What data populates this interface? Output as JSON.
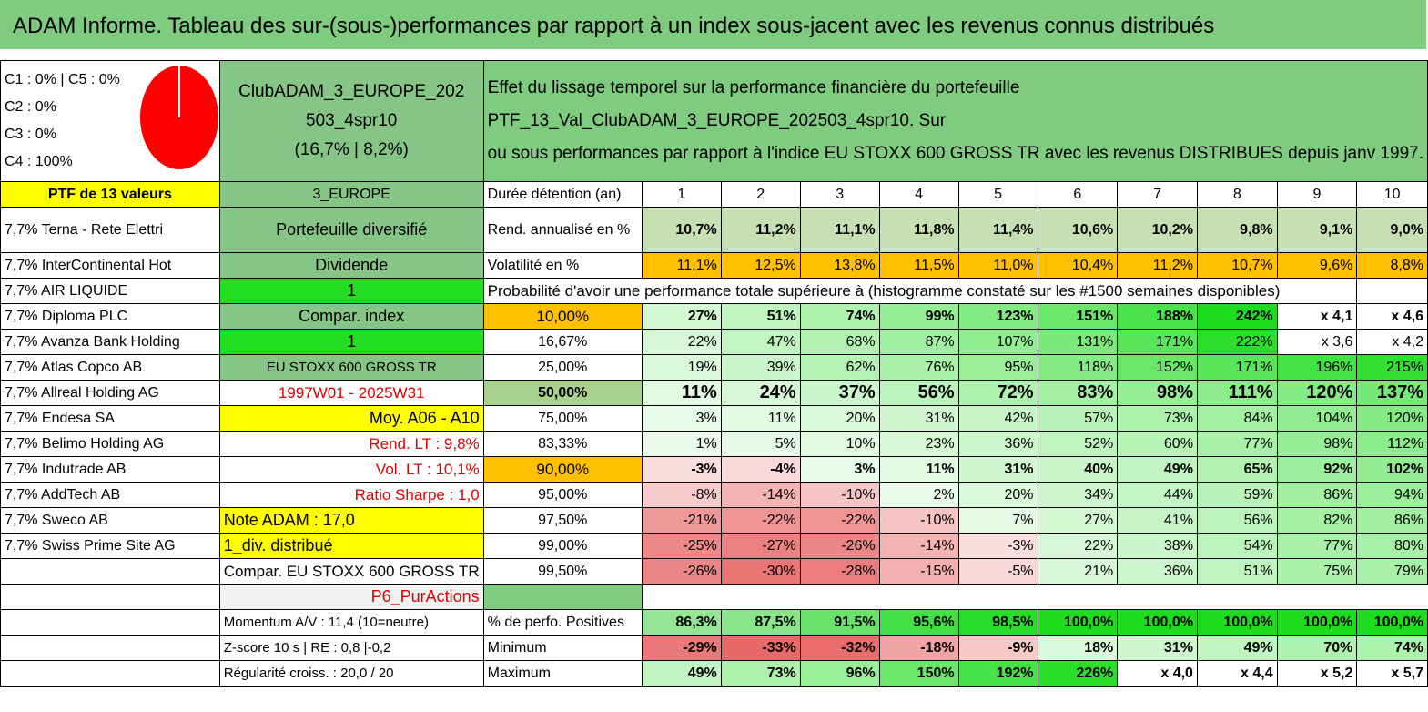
{
  "title": "ADAM Informe. Tableau des sur-(sous-)performances par rapport à un index sous-jacent avec les revenus connus distribués",
  "legend": {
    "c1": "C1 : 0% | C5 : 0%",
    "c2": "C2 : 0%",
    "c3": "C3 : 0%",
    "c4": "C4 : 100%"
  },
  "pie": {
    "color": "#ff0000"
  },
  "portfolio": {
    "name_line1": "ClubADAM_3_EUROPE_202",
    "name_line2": "503_4spr10",
    "name_line3": "(16,7% | 8,2%)"
  },
  "description": {
    "line1": "Effet du lissage temporel sur la performance financière du portefeuille PTF_13_Val_ClubADAM_3_EUROPE_202503_4spr10. Sur",
    "line2": "ou sous performances par rapport à l'indice EU STOXX 600 GROSS TR avec les revenus DISTRIBUES depuis janv 1997."
  },
  "left_labels": {
    "ptf_header": "PTF de 13 valeurs",
    "zone": "3_EUROPE",
    "diversified": "Portefeuille diversifié",
    "dividend": "Dividende",
    "one_a": "1",
    "compar_index": "Compar. index",
    "one_b": "1",
    "index_name": "EU STOXX 600 GROSS TR",
    "period": "1997W01 - 2025W31",
    "moy": "Moy. A06 - A10",
    "rend_lt": "Rend. LT : 9,8%",
    "vol_lt": "Vol. LT : 10,1%",
    "sharpe": "Ratio Sharpe : 1,0",
    "note": "Note ADAM : 17,0",
    "div": "1_div. distribué",
    "compar_eu": "Compar. EU STOXX 600 GROSS TR",
    "p6": "P6_PurActions",
    "momentum": "Momentum A/V : 11,4 (10=neutre)",
    "zscore": "Z-score 10 s | RE : 0,8 |-0,2",
    "regularite": "Régularité croiss. : 20,0 / 20"
  },
  "holdings": [
    "7,7% Terna - Rete Elettri",
    "7,7% InterContinental Hot",
    "7,7% AIR LIQUIDE",
    "7,7% Diploma PLC",
    "7,7% Avanza Bank Holding",
    "7,7% Atlas Copco AB",
    "7,7% Allreal Holding AG",
    "7,7% Endesa SA",
    "7,7% Belimo Holding AG",
    "7,7% Indutrade AB",
    "7,7% AddTech AB",
    "7,7% Sweco AB",
    "7,7% Swiss Prime Site AG"
  ],
  "stats": {
    "duree_label": "Durée détention (an)",
    "years": [
      "1",
      "2",
      "3",
      "4",
      "5",
      "6",
      "7",
      "8",
      "9",
      "10"
    ],
    "rend_label": "Rend. annualisé en %",
    "rend": [
      "10,7%",
      "11,2%",
      "11,1%",
      "11,8%",
      "11,4%",
      "10,6%",
      "10,2%",
      "9,8%",
      "9,1%",
      "9,0%"
    ],
    "vol_label": "Volatilité en %",
    "vol": [
      "11,1%",
      "12,5%",
      "13,8%",
      "11,5%",
      "11,0%",
      "10,4%",
      "11,2%",
      "10,7%",
      "9,6%",
      "8,8%"
    ],
    "proba_label": "Probabilité d'avoir une performance totale supérieure à (histogramme constaté sur les #1500 semaines disponibles)"
  },
  "proba_rows": [
    {
      "p": "10,00%",
      "v": [
        "27%",
        "51%",
        "74%",
        "99%",
        "123%",
        "151%",
        "188%",
        "242%",
        "x 4,1",
        "x 4,6"
      ]
    },
    {
      "p": "16,67%",
      "v": [
        "22%",
        "47%",
        "68%",
        "87%",
        "107%",
        "131%",
        "171%",
        "222%",
        "x 3,6",
        "x 4,2"
      ]
    },
    {
      "p": "25,00%",
      "v": [
        "19%",
        "39%",
        "62%",
        "76%",
        "95%",
        "118%",
        "152%",
        "171%",
        "196%",
        "215%"
      ]
    },
    {
      "p": "50,00%",
      "v": [
        "11%",
        "24%",
        "37%",
        "56%",
        "72%",
        "83%",
        "98%",
        "111%",
        "120%",
        "137%"
      ]
    },
    {
      "p": "75,00%",
      "v": [
        "3%",
        "11%",
        "20%",
        "31%",
        "42%",
        "57%",
        "73%",
        "84%",
        "104%",
        "120%"
      ]
    },
    {
      "p": "83,33%",
      "v": [
        "1%",
        "5%",
        "10%",
        "23%",
        "36%",
        "52%",
        "60%",
        "77%",
        "98%",
        "112%"
      ]
    },
    {
      "p": "90,00%",
      "v": [
        "-3%",
        "-4%",
        "3%",
        "11%",
        "31%",
        "40%",
        "49%",
        "65%",
        "92%",
        "102%"
      ]
    },
    {
      "p": "95,00%",
      "v": [
        "-8%",
        "-14%",
        "-10%",
        "2%",
        "20%",
        "34%",
        "44%",
        "59%",
        "86%",
        "94%"
      ]
    },
    {
      "p": "97,50%",
      "v": [
        "-21%",
        "-22%",
        "-22%",
        "-10%",
        "7%",
        "27%",
        "41%",
        "56%",
        "82%",
        "86%"
      ]
    },
    {
      "p": "99,00%",
      "v": [
        "-25%",
        "-27%",
        "-26%",
        "-14%",
        "-3%",
        "22%",
        "38%",
        "54%",
        "77%",
        "80%"
      ]
    },
    {
      "p": "99,50%",
      "v": [
        "-26%",
        "-30%",
        "-28%",
        "-15%",
        "-5%",
        "21%",
        "36%",
        "51%",
        "75%",
        "79%"
      ]
    }
  ],
  "summary": {
    "pos_label": "% de perfo. Positives",
    "pos": [
      "86,3%",
      "87,5%",
      "91,5%",
      "95,6%",
      "98,5%",
      "100,0%",
      "100,0%",
      "100,0%",
      "100,0%",
      "100,0%"
    ],
    "min_label": "Minimum",
    "min": [
      "-29%",
      "-33%",
      "-32%",
      "-18%",
      "-9%",
      "18%",
      "31%",
      "49%",
      "70%",
      "74%"
    ],
    "max_label": "Maximum",
    "max": [
      "49%",
      "73%",
      "96%",
      "150%",
      "192%",
      "226%",
      "x 4,0",
      "x 4,4",
      "x 5,2",
      "x 5,7"
    ]
  },
  "colors": {
    "header_green": "#7fcb7f",
    "highlight_yellow": "#ffff00",
    "bright_green": "#22dd22",
    "orange": "#ffc000",
    "red_text": "#e00000"
  }
}
